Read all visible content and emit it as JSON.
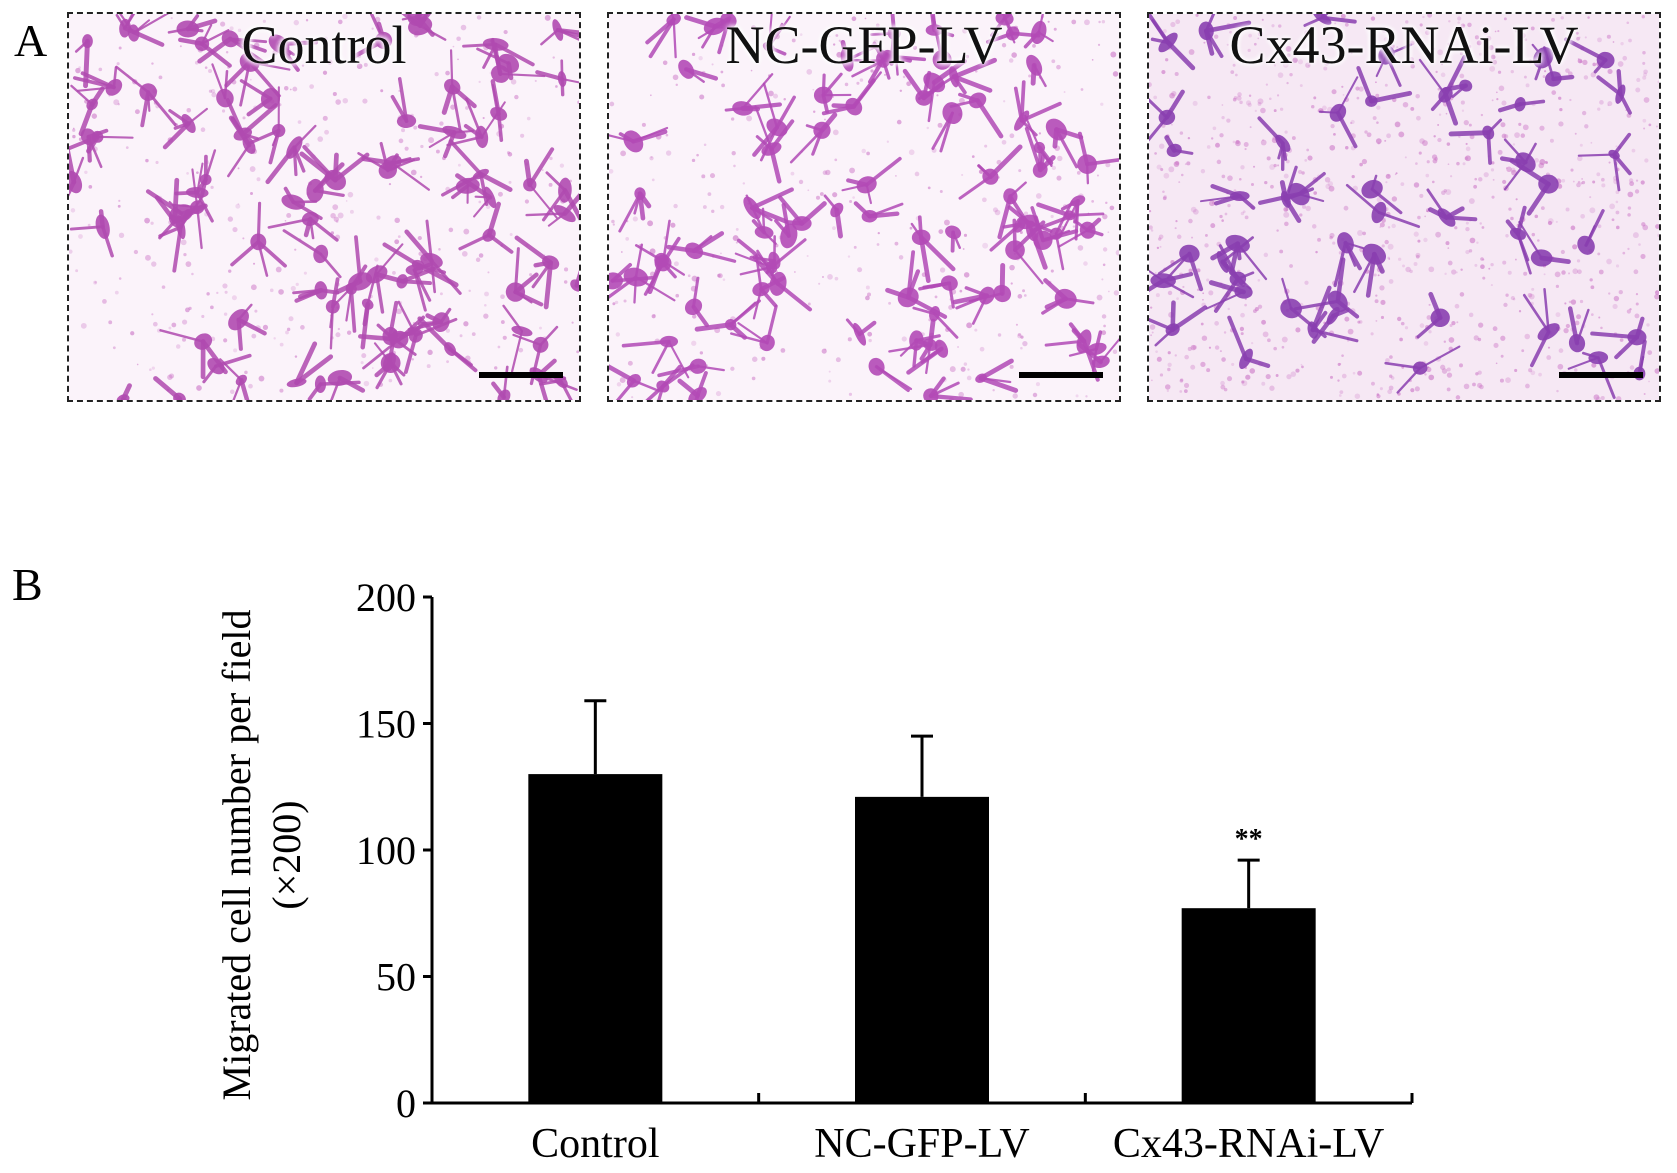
{
  "panel_a": {
    "letter": "A",
    "images": [
      {
        "title": "Control",
        "density": 1.0,
        "hue": "#b04ab0"
      },
      {
        "title": "NC-GFP-LV",
        "density": 0.95,
        "hue": "#b24ab6"
      },
      {
        "title": "Cx43-RNAi-LV",
        "density": 0.55,
        "hue": "#8a3fb0"
      }
    ]
  },
  "panel_b": {
    "letter": "B"
  },
  "chart_data": {
    "type": "bar",
    "categories": [
      "Control",
      "NC-GFP-LV",
      "Cx43-RNAi-LV"
    ],
    "values": [
      130,
      121,
      77
    ],
    "errors": [
      29,
      24,
      19
    ],
    "annotations": [
      "",
      "",
      "**"
    ],
    "ylabel_line1": "Migrated cell number per field",
    "ylabel_line2": "(×200)",
    "ylim": [
      0,
      200
    ],
    "yticks": [
      0,
      50,
      100,
      150,
      200
    ],
    "bar_color": "#000000",
    "grid": false
  }
}
